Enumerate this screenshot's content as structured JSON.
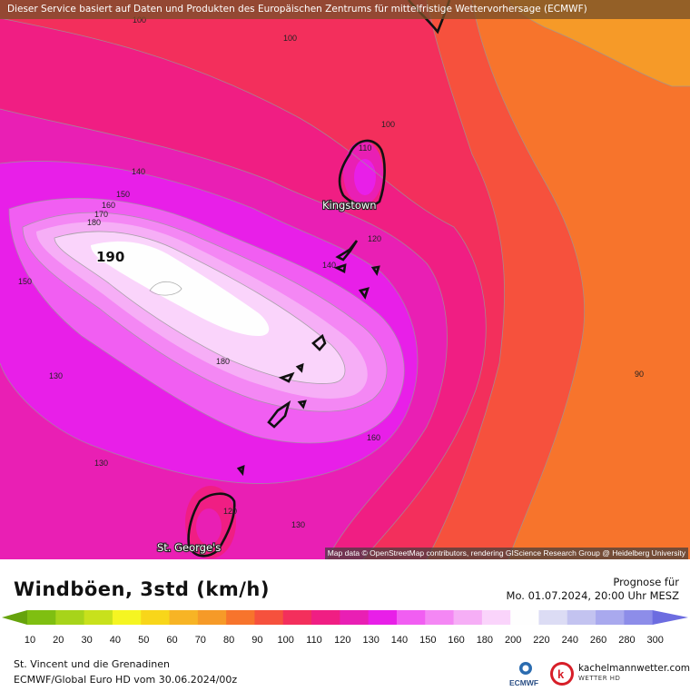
{
  "header": {
    "source_notice": "Dieser Service basiert auf Daten und Produkten des Europäischen Zentrums für mittelfristige Wettervorhersage (ECMWF)"
  },
  "map": {
    "attribution": "Map data © OpenStreetMap contributors, rendering GIScience Research Group @ Heidelberg University",
    "cities": [
      {
        "name": "Kingstown"
      },
      {
        "name": "St. George's"
      }
    ],
    "isoline_labels": [
      "100",
      "100",
      "100",
      "110",
      "140",
      "150",
      "160",
      "170",
      "180",
      "190",
      "150",
      "140",
      "120",
      "130",
      "180",
      "160",
      "130",
      "120",
      "130",
      "90"
    ]
  },
  "legend": {
    "title": "Windböen, 3std (km/h)",
    "forecast_label": "Prognose für",
    "forecast_time": "Mo. 01.07.2024, 20:00 Uhr MESZ",
    "ticks": [
      "10",
      "20",
      "30",
      "40",
      "50",
      "60",
      "70",
      "80",
      "90",
      "100",
      "110",
      "120",
      "130",
      "140",
      "150",
      "160",
      "180",
      "200",
      "220",
      "240",
      "260",
      "280",
      "300"
    ],
    "colors": [
      "#66a30c",
      "#7fbf11",
      "#a7d41a",
      "#c8e11c",
      "#f5f522",
      "#f8d61a",
      "#f7b425",
      "#f69a28",
      "#f7742c",
      "#f6513d",
      "#f32f5c",
      "#f01e83",
      "#e91fb4",
      "#e81fe8",
      "#f15ef2",
      "#f487f4",
      "#f6aef6",
      "#fad4fb",
      "#fefefe",
      "#dcdcf4",
      "#c3c3f0",
      "#a9a9ee",
      "#8d8de9",
      "#6c6ce0"
    ]
  },
  "footer": {
    "location": "St. Vincent und die Grenadinen",
    "model_run": "ECMWF/Global Euro HD vom  30.06.2024/00z",
    "logos": {
      "ecmwf": "ECMWF",
      "site": "kachelmannwetter.com",
      "site_sub": "WETTER HD"
    }
  }
}
